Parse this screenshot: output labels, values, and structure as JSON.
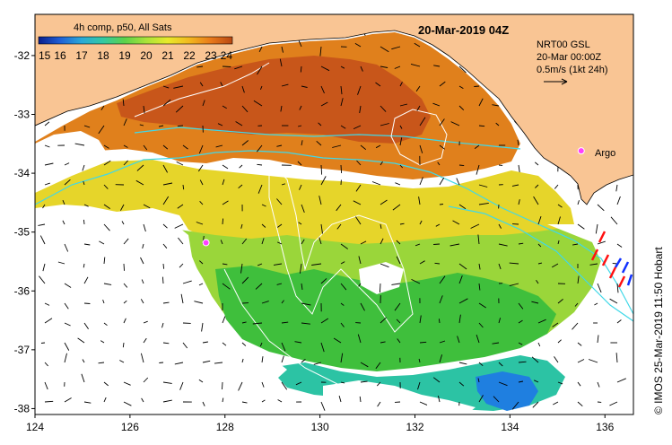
{
  "map": {
    "date_title": "20-Mar-2019 04Z",
    "colorbar": {
      "title": "4h comp, p50, All Sats",
      "tick_labels": [
        "15",
        "16",
        "17",
        "18",
        "19",
        "20",
        "21",
        "22",
        "23",
        "24"
      ],
      "min": 15,
      "max": 24,
      "colors": [
        "#0a1e8c",
        "#1f5fd6",
        "#2aa9d8",
        "#33c9a2",
        "#5cd24a",
        "#a9e33a",
        "#e8ea2a",
        "#f2b81f",
        "#e9791a",
        "#b84812"
      ]
    },
    "current_legend": {
      "line1": "NRT00 GSL",
      "line2": "20-Mar 00:00Z",
      "line3": "0.5m/s (1kt 24h)"
    },
    "argo_label": "Argo",
    "side_label": "© IMOS 25-Mar-2019 11:50 Hobart",
    "x_axis": {
      "labels": [
        "124",
        "126",
        "128",
        "130",
        "132",
        "134",
        "136"
      ],
      "values": [
        124,
        126,
        128,
        130,
        132,
        134,
        136
      ],
      "range": [
        124,
        136.6
      ]
    },
    "y_axis": {
      "labels": [
        "-32",
        "-33",
        "-34",
        "-35",
        "-36",
        "-37",
        "-38"
      ],
      "values": [
        -32,
        -33,
        -34,
        -35,
        -36,
        -37,
        -38
      ],
      "range": [
        -31.3,
        -38.1
      ]
    },
    "argo_floats": [
      {
        "lon": 135.5,
        "lat": -33.62
      },
      {
        "lon": 127.6,
        "lat": -35.18
      }
    ],
    "land_color": "#f9c594",
    "contour_color_cyan": "#40d8e8",
    "contour_color_white": "#ffffff"
  }
}
